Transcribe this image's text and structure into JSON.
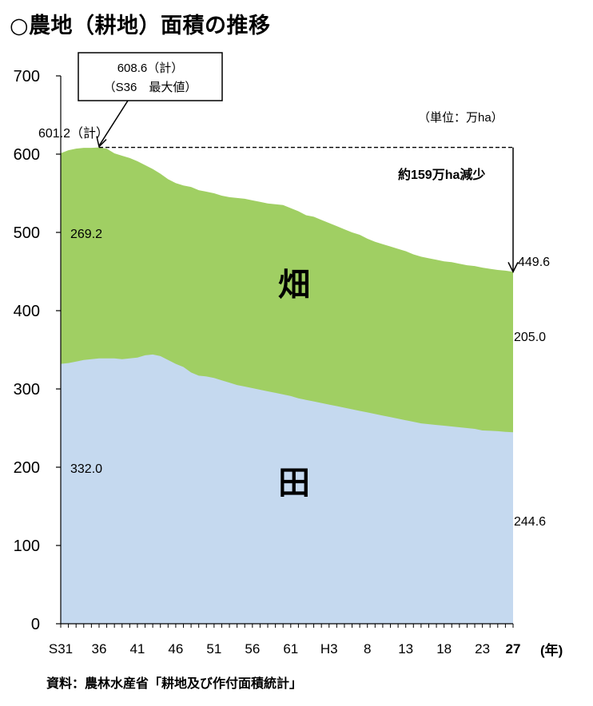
{
  "page": {
    "title": "○農地（耕地）面積の推移",
    "source": "資料：農林水産省「耕地及び作付面積統計」"
  },
  "chart_data": {
    "type": "area",
    "stacked": true,
    "x_tick_labels": [
      "S31",
      "36",
      "41",
      "46",
      "51",
      "56",
      "61",
      "H3",
      "8",
      "13",
      "18",
      "23",
      "27"
    ],
    "x_unit_label": "(年)",
    "y_ticks": [
      0,
      100,
      200,
      300,
      400,
      500,
      600,
      700
    ],
    "ylim": [
      0,
      700
    ],
    "unit_label": "（単位：万ha）",
    "years": [
      "S31",
      "S32",
      "S33",
      "S34",
      "S35",
      "S36",
      "S37",
      "S38",
      "S39",
      "S40",
      "S41",
      "S42",
      "S43",
      "S44",
      "S45",
      "S46",
      "S47",
      "S48",
      "S49",
      "S50",
      "S51",
      "S52",
      "S53",
      "S54",
      "S55",
      "S56",
      "S57",
      "S58",
      "S59",
      "S60",
      "S61",
      "S62",
      "S63",
      "H1",
      "H2",
      "H3",
      "H4",
      "H5",
      "H6",
      "H7",
      "H8",
      "H9",
      "H10",
      "H11",
      "H12",
      "H13",
      "H14",
      "H15",
      "H16",
      "H17",
      "H18",
      "H19",
      "H20",
      "H21",
      "H22",
      "H23",
      "H24",
      "H25",
      "H26",
      "H27"
    ],
    "series": [
      {
        "name": "田",
        "color": "#c5d9ef",
        "values": [
          332.0,
          333,
          335,
          337,
          338,
          339,
          339,
          339,
          338,
          339,
          340,
          343,
          344,
          342,
          337,
          332,
          328,
          321,
          317,
          316,
          314,
          311,
          308,
          305,
          303,
          301,
          299,
          297,
          295,
          293,
          291,
          288,
          286,
          284,
          282,
          280,
          278,
          276,
          274,
          272,
          270,
          268,
          266,
          264,
          262,
          260,
          258,
          256,
          255,
          254,
          253,
          252,
          251,
          250,
          249,
          247,
          246.5,
          246,
          245.2,
          244.6
        ]
      },
      {
        "name": "畑",
        "color": "#a0cf63",
        "values": [
          269.2,
          272,
          272,
          271,
          270,
          269.6,
          268,
          262,
          260,
          256,
          251,
          243,
          237,
          233,
          231,
          231,
          232,
          237,
          237,
          236,
          236,
          236,
          237,
          239,
          240,
          240,
          240,
          240,
          241,
          242,
          240,
          239,
          236,
          236,
          234,
          232,
          230,
          228,
          226,
          225,
          222,
          220,
          219,
          218,
          217,
          216,
          214,
          213,
          212,
          211,
          210,
          210,
          209,
          208,
          208,
          208,
          207,
          206,
          206,
          205.0
        ]
      }
    ],
    "data_labels": {
      "start_total": "601.2（計）",
      "start_paddy": "332.0",
      "start_upland": "269.2",
      "end_total": "449.6",
      "end_paddy": "244.6",
      "end_upland": "205.0"
    },
    "annotations": {
      "peak_line1": "608.6（計）",
      "peak_line2": "（S36　最大値）",
      "peak_total": 608.6,
      "peak_year": "S36",
      "decrease": "約159万ha減少",
      "area_label_upland": "畑",
      "area_label_paddy": "田"
    }
  }
}
